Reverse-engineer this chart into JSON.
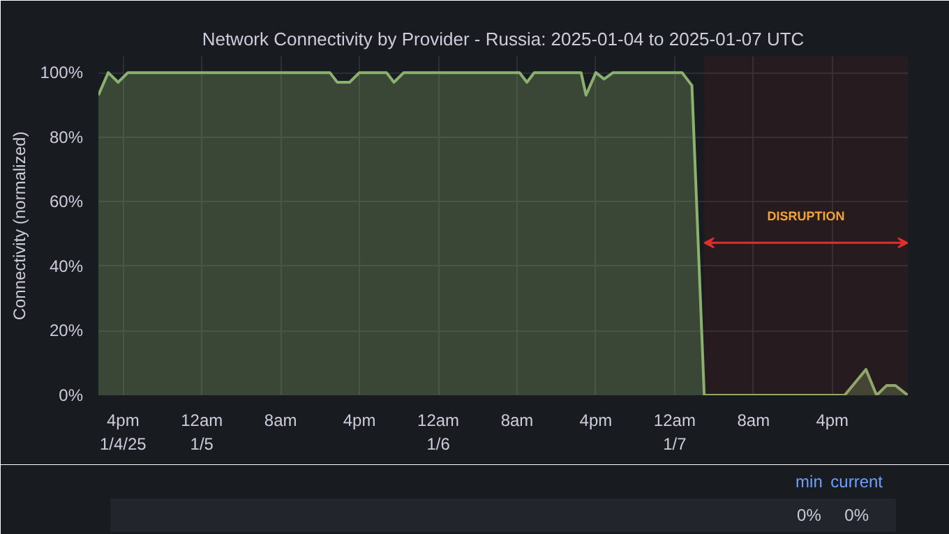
{
  "chart_data": {
    "type": "area",
    "title": "Network Connectivity by Provider - Russia: 2025-01-04 to 2025-01-07 UTC",
    "ylabel": "Connectivity (normalized)",
    "x": [
      "2025-01-04T13:30",
      "2025-01-04T14:30",
      "2025-01-04T15:30",
      "2025-01-04T16:30",
      "2025-01-05T13:00",
      "2025-01-05T13:45",
      "2025-01-05T15:00",
      "2025-01-05T16:00",
      "2025-01-05T18:45",
      "2025-01-05T19:30",
      "2025-01-05T20:30",
      "2025-01-06T08:15",
      "2025-01-06T09:00",
      "2025-01-06T09:45",
      "2025-01-06T14:30",
      "2025-01-06T15:00",
      "2025-01-06T16:00",
      "2025-01-06T16:50",
      "2025-01-06T17:45",
      "2025-01-07T00:45",
      "2025-01-07T01:45",
      "2025-01-07T03:00",
      "2025-01-07T17:15",
      "2025-01-07T19:25",
      "2025-01-07T20:30",
      "2025-01-07T21:30",
      "2025-01-07T22:25",
      "2025-01-07T23:40"
    ],
    "series": [
      {
        "color": "#8ab16e",
        "values": [
          93,
          100,
          97,
          100,
          100,
          97,
          97,
          100,
          100,
          97,
          100,
          100,
          97,
          100,
          100,
          93,
          100,
          98,
          100,
          100,
          96,
          0,
          0,
          8,
          0,
          3,
          3,
          0
        ]
      }
    ],
    "xlim": [
      "2025-01-04T13:30",
      "2025-01-07T23:40"
    ],
    "xticks": [
      {
        "value": "2025-01-04T16:00",
        "label": "4pm\n1/4/25"
      },
      {
        "value": "2025-01-05T00:00",
        "label": "12am\n1/5"
      },
      {
        "value": "2025-01-05T08:00",
        "label": "8am"
      },
      {
        "value": "2025-01-05T16:00",
        "label": "4pm"
      },
      {
        "value": "2025-01-06T00:00",
        "label": "12am\n1/6"
      },
      {
        "value": "2025-01-06T08:00",
        "label": "8am"
      },
      {
        "value": "2025-01-06T16:00",
        "label": "4pm"
      },
      {
        "value": "2025-01-07T00:00",
        "label": "12am\n1/7"
      },
      {
        "value": "2025-01-07T08:00",
        "label": "8am"
      },
      {
        "value": "2025-01-07T16:00",
        "label": "4pm"
      }
    ],
    "ylim": [
      0,
      105
    ],
    "yticks": [
      {
        "value": 0,
        "label": "0%"
      },
      {
        "value": 20,
        "label": "20%"
      },
      {
        "value": 40,
        "label": "40%"
      },
      {
        "value": 60,
        "label": "60%"
      },
      {
        "value": 80,
        "label": "80%"
      },
      {
        "value": 100,
        "label": "100%"
      }
    ],
    "bands": [
      {
        "axis": "x",
        "from": "2025-01-07T03:00",
        "to": "2025-01-07T23:40",
        "label": "DISRUPTION",
        "color": "#e02f2f"
      }
    ],
    "annotations": [
      "min",
      "current",
      "0%",
      "0%"
    ],
    "grid": true
  }
}
